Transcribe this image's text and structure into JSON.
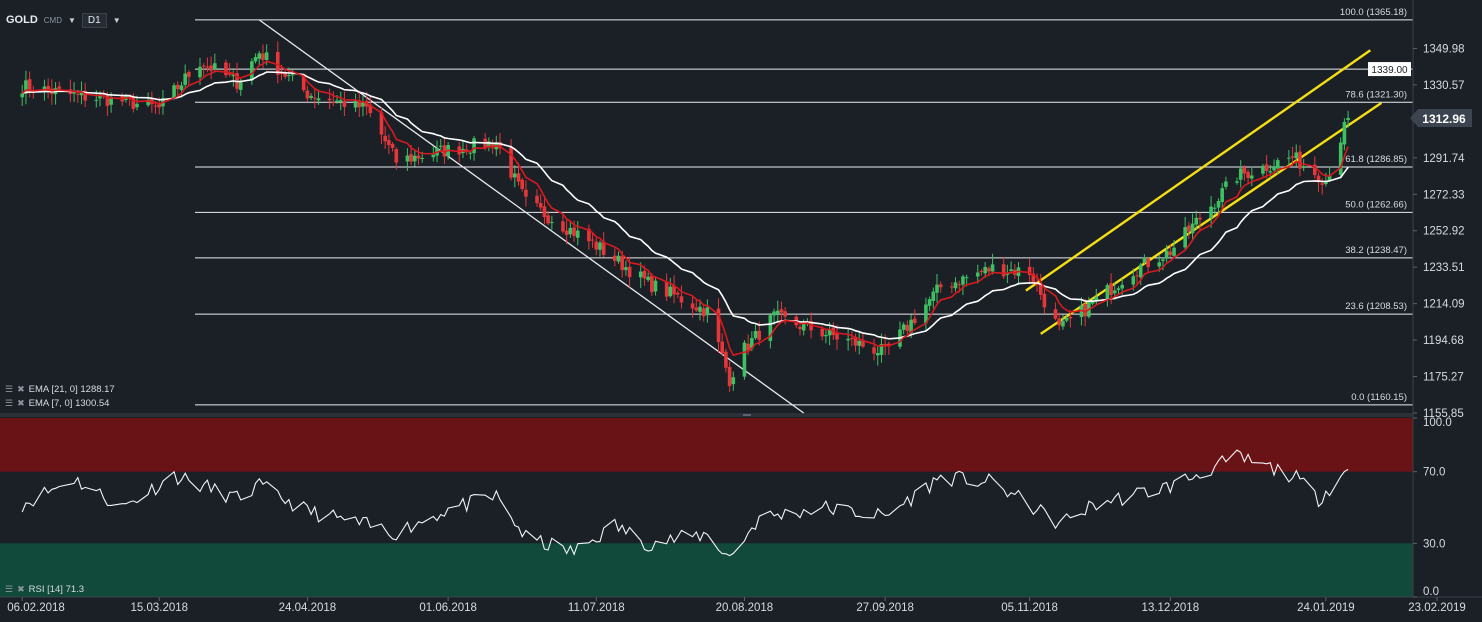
{
  "toolbar": {
    "symbol": "GOLD",
    "instrument_type": "CMD",
    "timeframe": "D1"
  },
  "indicators": {
    "ema21": "EMA [21, 0]  1288.17",
    "ema7": "EMA [7, 0]  1300.54",
    "rsi": "RSI [14]  71.3"
  },
  "colors": {
    "background": "#1b2027",
    "bull_candle": "#3cc062",
    "bear_candle": "#e5363a",
    "ema7": "#d8191e",
    "ema21": "#ffffff",
    "channel": "#f5de14",
    "rsi_overbought_zone": "#6a1316",
    "rsi_oversold_zone": "#114a3a"
  },
  "chart_data": [
    {
      "type": "candlestick",
      "title": "GOLD",
      "timeframe": "D1",
      "x_tick_labels": [
        "06.02.2018",
        "15.03.2018",
        "24.04.2018",
        "01.06.2018",
        "11.07.2018",
        "20.08.2018",
        "27.09.2018",
        "05.11.2018",
        "13.12.2018",
        "24.01.2019",
        "23.02.2019"
      ],
      "y_tick_labels": [
        "1349.98",
        "1330.57",
        "1312.96",
        "1291.74",
        "1272.33",
        "1252.92",
        "1233.51",
        "1214.09",
        "1194.68",
        "1175.27",
        "1155.85"
      ],
      "ylim": [
        1155.85,
        1369.39
      ],
      "current_price": "1312.96",
      "horizontal_line_label": "1339.00",
      "fibonacci": [
        {
          "level": "100.0",
          "price": 1365.18,
          "label": "100.0 (1365.18)"
        },
        {
          "level": "78.6",
          "price": 1321.3,
          "label": "78.6 (1321.30)"
        },
        {
          "level": "61.8",
          "price": 1286.85,
          "label": "61.8 (1286.85)"
        },
        {
          "level": "50.0",
          "price": 1262.66,
          "label": "50.0 (1262.66)"
        },
        {
          "level": "38.2",
          "price": 1238.47,
          "label": "38.2 (1238.47)"
        },
        {
          "level": "23.6",
          "price": 1208.53,
          "label": "23.6 (1208.53)"
        },
        {
          "level": "0.0",
          "price": 1160.15,
          "label": "0.0 (1160.15)"
        }
      ],
      "close_anchors": [
        {
          "date": "2018-02-06",
          "close": 1330
        },
        {
          "date": "2018-02-20",
          "close": 1325
        },
        {
          "date": "2018-03-05",
          "close": 1322
        },
        {
          "date": "2018-03-15",
          "close": 1318
        },
        {
          "date": "2018-03-26",
          "close": 1343
        },
        {
          "date": "2018-04-05",
          "close": 1332
        },
        {
          "date": "2018-04-11",
          "close": 1348
        },
        {
          "date": "2018-04-24",
          "close": 1326
        },
        {
          "date": "2018-05-10",
          "close": 1318
        },
        {
          "date": "2018-05-18",
          "close": 1290
        },
        {
          "date": "2018-06-01",
          "close": 1296
        },
        {
          "date": "2018-06-14",
          "close": 1300
        },
        {
          "date": "2018-06-22",
          "close": 1268
        },
        {
          "date": "2018-07-11",
          "close": 1245
        },
        {
          "date": "2018-07-25",
          "close": 1225
        },
        {
          "date": "2018-08-10",
          "close": 1210
        },
        {
          "date": "2018-08-16",
          "close": 1174
        },
        {
          "date": "2018-08-20",
          "close": 1190
        },
        {
          "date": "2018-08-28",
          "close": 1207
        },
        {
          "date": "2018-09-27",
          "close": 1188
        },
        {
          "date": "2018-10-12",
          "close": 1223
        },
        {
          "date": "2018-10-26",
          "close": 1233
        },
        {
          "date": "2018-11-05",
          "close": 1231
        },
        {
          "date": "2018-11-13",
          "close": 1200
        },
        {
          "date": "2018-12-03",
          "close": 1232
        },
        {
          "date": "2018-12-13",
          "close": 1242
        },
        {
          "date": "2018-12-31",
          "close": 1282
        },
        {
          "date": "2019-01-15",
          "close": 1292
        },
        {
          "date": "2019-01-24",
          "close": 1280
        },
        {
          "date": "2019-01-30",
          "close": 1312.96
        }
      ],
      "ema": [
        {
          "name": "EMA [21, 0]",
          "period": 21,
          "last": 1288.17
        },
        {
          "name": "EMA [7, 0]",
          "period": 7,
          "last": 1300.54
        }
      ],
      "trendlines": [
        {
          "name": "downtrend",
          "from": {
            "date": "2018-04-11",
            "price": 1365.18
          },
          "to": {
            "date": "2018-09-05",
            "price": 1155.85
          }
        },
        {
          "name": "channel-upper",
          "from": {
            "date": "2018-11-04",
            "price": 1221
          },
          "to": {
            "date": "2019-02-05",
            "price": 1349
          }
        },
        {
          "name": "channel-lower",
          "from": {
            "date": "2018-11-08",
            "price": 1198
          },
          "to": {
            "date": "2019-02-08",
            "price": 1321
          }
        }
      ]
    },
    {
      "type": "line",
      "title": "RSI [14]",
      "last": 71.3,
      "y_tick_labels": [
        "100.0",
        "70.0",
        "30.0",
        "0.0"
      ],
      "ylim": [
        0,
        100
      ],
      "overbought": 70,
      "oversold": 30,
      "anchors": [
        {
          "date": "2018-02-06",
          "value": 52
        },
        {
          "date": "2018-02-20",
          "value": 66
        },
        {
          "date": "2018-03-05",
          "value": 50
        },
        {
          "date": "2018-03-19",
          "value": 68
        },
        {
          "date": "2018-04-05",
          "value": 55
        },
        {
          "date": "2018-04-11",
          "value": 62
        },
        {
          "date": "2018-04-24",
          "value": 48
        },
        {
          "date": "2018-05-18",
          "value": 36
        },
        {
          "date": "2018-06-01",
          "value": 49
        },
        {
          "date": "2018-06-14",
          "value": 56
        },
        {
          "date": "2018-06-22",
          "value": 33
        },
        {
          "date": "2018-07-05",
          "value": 25
        },
        {
          "date": "2018-07-16",
          "value": 40
        },
        {
          "date": "2018-07-25",
          "value": 30
        },
        {
          "date": "2018-08-10",
          "value": 35
        },
        {
          "date": "2018-08-16",
          "value": 22
        },
        {
          "date": "2018-08-24",
          "value": 44
        },
        {
          "date": "2018-09-10",
          "value": 50
        },
        {
          "date": "2018-09-27",
          "value": 45
        },
        {
          "date": "2018-10-12",
          "value": 67
        },
        {
          "date": "2018-10-26",
          "value": 64
        },
        {
          "date": "2018-11-13",
          "value": 41
        },
        {
          "date": "2018-11-23",
          "value": 52
        },
        {
          "date": "2018-12-03",
          "value": 57
        },
        {
          "date": "2018-12-13",
          "value": 62
        },
        {
          "date": "2018-12-31",
          "value": 78
        },
        {
          "date": "2019-01-15",
          "value": 68
        },
        {
          "date": "2019-01-22",
          "value": 55
        },
        {
          "date": "2019-01-30",
          "value": 71.3
        }
      ]
    }
  ]
}
